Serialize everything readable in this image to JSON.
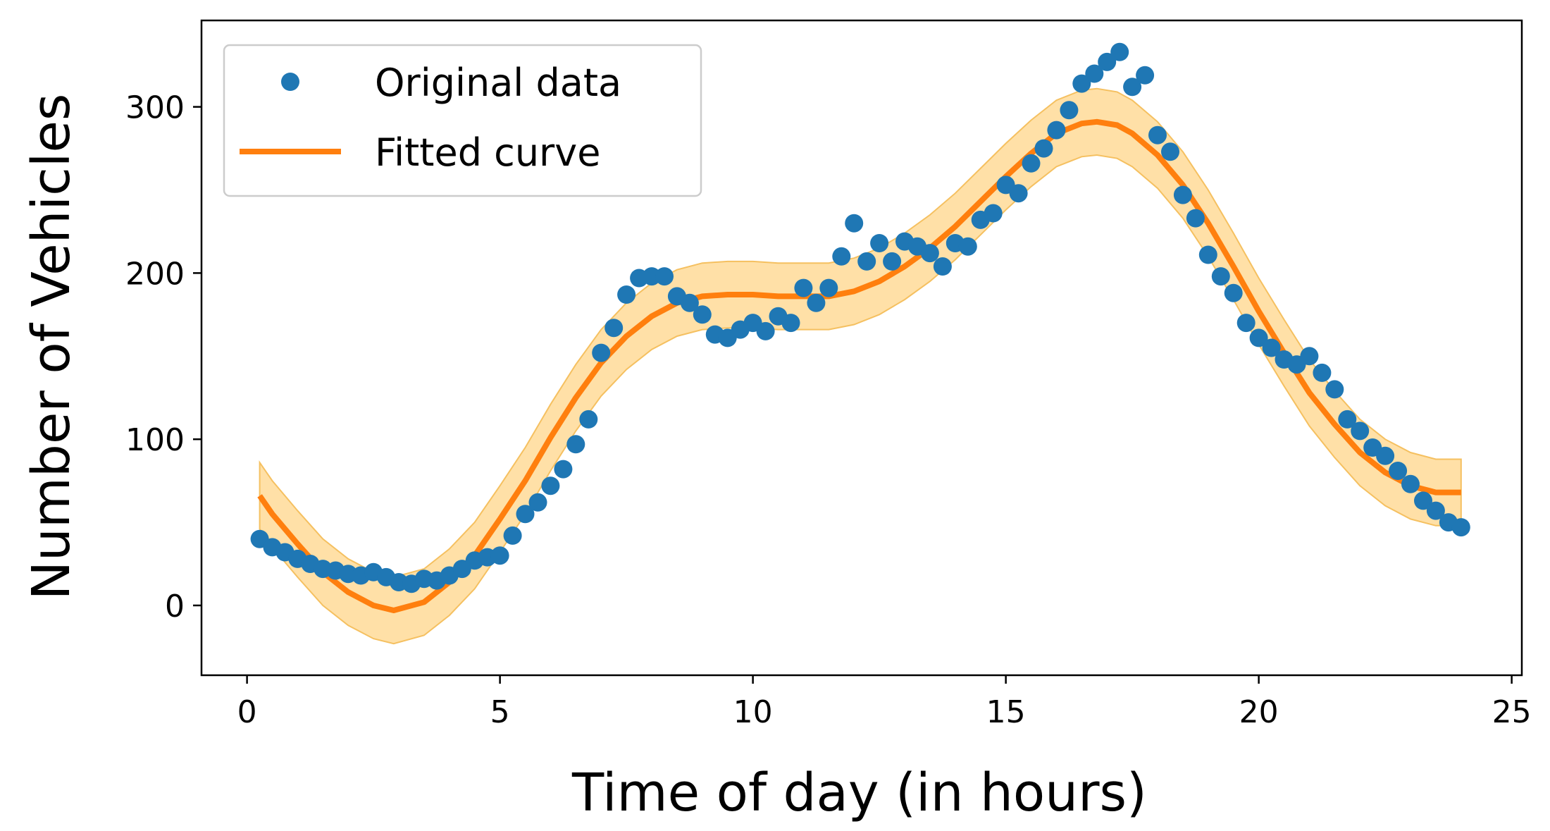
{
  "chart_data": {
    "type": "scatter",
    "title": "",
    "xlabel": "Time of day (in hours)",
    "ylabel": "Number of Vehicles",
    "xlim": [
      -0.9,
      25.2
    ],
    "ylim": [
      -42,
      352
    ],
    "xticks": [
      0,
      5,
      10,
      15,
      20,
      25
    ],
    "yticks": [
      0,
      100,
      200,
      300
    ],
    "grid": false,
    "legend_position": "upper left",
    "colors": {
      "points": "#1f77b4",
      "curve": "#ff7f0e",
      "band_fill": "#ffd68a",
      "band_edge": "#f5c060"
    },
    "series": [
      {
        "name": "Original data",
        "kind": "points",
        "x": [
          0.25,
          0.5,
          0.75,
          1.0,
          1.25,
          1.5,
          1.75,
          2.0,
          2.25,
          2.5,
          2.75,
          3.0,
          3.25,
          3.5,
          3.75,
          4.0,
          4.25,
          4.5,
          4.75,
          5.0,
          5.25,
          5.5,
          5.75,
          6.0,
          6.25,
          6.5,
          6.75,
          7.0,
          7.25,
          7.5,
          7.75,
          8.0,
          8.25,
          8.5,
          8.75,
          9.0,
          9.25,
          9.5,
          9.75,
          10.0,
          10.25,
          10.5,
          10.75,
          11.0,
          11.25,
          11.5,
          11.75,
          12.0,
          12.25,
          12.5,
          12.75,
          13.0,
          13.25,
          13.5,
          13.75,
          14.0,
          14.25,
          14.5,
          14.75,
          15.0,
          15.25,
          15.5,
          15.75,
          16.0,
          16.25,
          16.5,
          16.75,
          17.0,
          17.25,
          17.5,
          17.75,
          18.0,
          18.25,
          18.5,
          18.75,
          19.0,
          19.25,
          19.5,
          19.75,
          20.0,
          20.25,
          20.5,
          20.75,
          21.0,
          21.25,
          21.5,
          21.75,
          22.0,
          22.25,
          22.5,
          22.75,
          23.0,
          23.25,
          23.5,
          23.75,
          24.0
        ],
        "y": [
          40,
          35,
          32,
          28,
          25,
          22,
          21,
          19,
          18,
          20,
          17,
          14,
          13,
          16,
          15,
          18,
          22,
          27,
          29,
          30,
          42,
          55,
          62,
          72,
          82,
          97,
          112,
          152,
          167,
          187,
          197,
          198,
          198,
          186,
          182,
          175,
          163,
          161,
          166,
          170,
          165,
          174,
          170,
          191,
          182,
          191,
          210,
          230,
          207,
          218,
          207,
          219,
          216,
          212,
          204,
          218,
          216,
          232,
          236,
          253,
          248,
          266,
          275,
          286,
          298,
          314,
          320,
          327,
          333,
          312,
          319,
          283,
          273,
          247,
          233,
          211,
          198,
          188,
          170,
          161,
          155,
          148,
          145,
          150,
          140,
          130,
          112,
          105,
          95,
          90,
          81,
          73,
          63,
          57,
          50,
          47
        ]
      },
      {
        "name": "Fitted curve",
        "kind": "line",
        "x": [
          0.25,
          0.5,
          1.0,
          1.5,
          2.0,
          2.5,
          2.9,
          3.5,
          4.0,
          4.5,
          5.0,
          5.5,
          6.0,
          6.5,
          7.0,
          7.5,
          8.0,
          8.5,
          9.0,
          9.5,
          10.0,
          10.5,
          11.0,
          11.5,
          12.0,
          12.5,
          13.0,
          13.5,
          14.0,
          14.5,
          15.0,
          15.5,
          16.0,
          16.5,
          16.8,
          17.2,
          17.5,
          18.0,
          18.5,
          19.0,
          19.5,
          20.0,
          20.5,
          21.0,
          21.5,
          22.0,
          22.5,
          23.0,
          23.5,
          24.0
        ],
        "y": [
          66,
          55,
          37,
          20,
          8,
          0,
          -3,
          2,
          14,
          30,
          52,
          75,
          101,
          125,
          146,
          162,
          174,
          182,
          186,
          187,
          187,
          186,
          186,
          186,
          189,
          195,
          204,
          215,
          228,
          243,
          258,
          272,
          284,
          290,
          291,
          289,
          284,
          271,
          253,
          230,
          204,
          177,
          152,
          128,
          109,
          92,
          80,
          72,
          68,
          68
        ],
        "band_halfwidth": 20
      }
    ]
  }
}
